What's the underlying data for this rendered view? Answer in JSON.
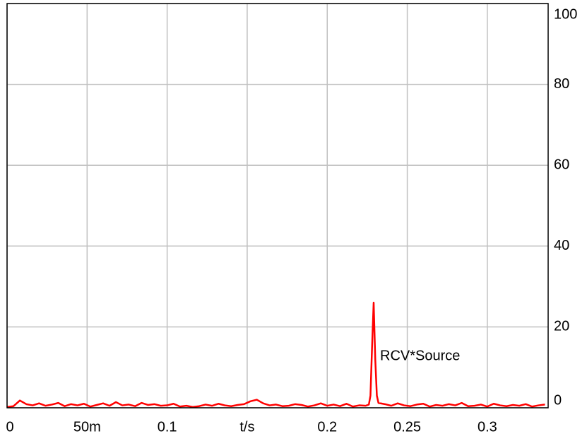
{
  "chart_data": {
    "type": "line",
    "annotation": "RCV*Source",
    "x": [
      0,
      0.004,
      0.008,
      0.012,
      0.016,
      0.02,
      0.024,
      0.028,
      0.032,
      0.036,
      0.04,
      0.044,
      0.048,
      0.052,
      0.056,
      0.06,
      0.064,
      0.068,
      0.072,
      0.076,
      0.08,
      0.084,
      0.088,
      0.092,
      0.096,
      0.1,
      0.104,
      0.108,
      0.112,
      0.116,
      0.12,
      0.124,
      0.128,
      0.132,
      0.136,
      0.14,
      0.144,
      0.148,
      0.152,
      0.156,
      0.16,
      0.164,
      0.168,
      0.172,
      0.176,
      0.18,
      0.184,
      0.188,
      0.192,
      0.196,
      0.2,
      0.204,
      0.208,
      0.212,
      0.216,
      0.22,
      0.224,
      0.226,
      0.227,
      0.228,
      0.229,
      0.23,
      0.231,
      0.232,
      0.236,
      0.24,
      0.244,
      0.248,
      0.252,
      0.256,
      0.26,
      0.264,
      0.268,
      0.272,
      0.276,
      0.28,
      0.284,
      0.288,
      0.292,
      0.296,
      0.3,
      0.304,
      0.308,
      0.312,
      0.316,
      0.32,
      0.324,
      0.328,
      0.332,
      0.336
    ],
    "series": [
      {
        "name": "RCV*Source",
        "color": "#ff0000",
        "values": [
          0.2,
          0.4,
          1.8,
          0.9,
          0.6,
          1.1,
          0.5,
          0.8,
          1.2,
          0.4,
          0.9,
          0.6,
          1.0,
          0.3,
          0.7,
          1.1,
          0.5,
          1.4,
          0.6,
          0.8,
          0.4,
          1.2,
          0.7,
          0.9,
          0.5,
          0.6,
          1.0,
          0.3,
          0.5,
          0.2,
          0.4,
          0.8,
          0.5,
          1.0,
          0.6,
          0.4,
          0.7,
          0.9,
          1.6,
          2.0,
          1.1,
          0.6,
          0.8,
          0.4,
          0.5,
          0.9,
          0.7,
          0.3,
          0.6,
          1.1,
          0.5,
          0.8,
          0.4,
          1.0,
          0.3,
          0.6,
          0.5,
          0.8,
          3,
          15,
          26,
          12,
          3,
          1.2,
          0.9,
          0.5,
          1.1,
          0.6,
          0.4,
          0.8,
          1.0,
          0.3,
          0.7,
          0.5,
          0.9,
          0.6,
          1.2,
          0.4,
          0.5,
          0.8,
          0.3,
          1.0,
          0.6,
          0.4,
          0.7,
          0.5,
          0.9,
          0.3,
          0.6,
          0.8
        ]
      }
    ],
    "xlim": [
      0,
      0.338
    ],
    "xticks": [
      0,
      {
        "value": 0.05,
        "label": "50m"
      },
      0.1,
      {
        "value": 0.15,
        "label": "t/s"
      },
      0.2,
      0.25,
      0.3
    ],
    "ylim": [
      0,
      100
    ],
    "yticks": [
      0,
      20,
      40,
      60,
      80,
      100
    ],
    "grid": true
  }
}
